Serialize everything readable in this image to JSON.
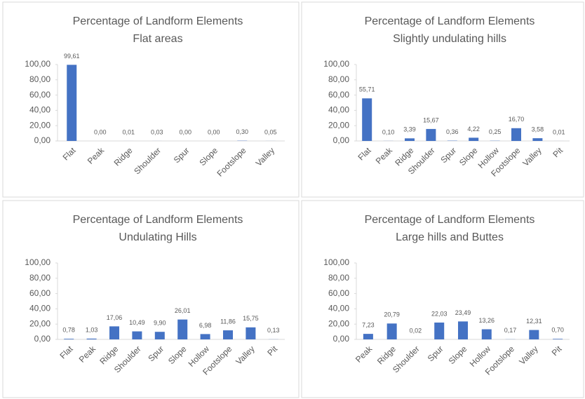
{
  "chart_data": [
    {
      "type": "bar",
      "title": "Percentage of Landform Elements",
      "subtitle": "Flat areas",
      "categories": [
        "Flat",
        "Peak",
        "Ridge",
        "Shoulder",
        "Spur",
        "Slope",
        "Footslope",
        "Valley"
      ],
      "values": [
        99.61,
        0,
        0.01,
        0.03,
        0,
        0,
        0.3,
        0.05
      ],
      "value_labels": [
        "99,61",
        "0,00",
        "0,01",
        "0,03",
        "0,00",
        "0,00",
        "0,30",
        "0,05"
      ],
      "color": "#4472c4",
      "ylim": [
        0,
        100
      ],
      "yticks": [
        {
          "value": 0,
          "label": "0,00"
        },
        {
          "value": 20,
          "label": "20,00"
        },
        {
          "value": 40,
          "label": "40,00"
        },
        {
          "value": 60,
          "label": "60,00"
        },
        {
          "value": 80,
          "label": "80,00"
        },
        {
          "value": 100,
          "label": "100,00"
        }
      ]
    },
    {
      "type": "bar",
      "title": "Percentage of Landform Elements",
      "subtitle": "Slightly undulating hills",
      "categories": [
        "Flat",
        "Peak",
        "Ridge",
        "Shoulder",
        "Spur",
        "Slope",
        "Hollow",
        "Footslope",
        "Valley",
        "Pit"
      ],
      "values": [
        55.71,
        0.1,
        3.39,
        15.67,
        0.36,
        4.22,
        0.25,
        16.7,
        3.58,
        0.01
      ],
      "value_labels": [
        "55,71",
        "0,10",
        "3,39",
        "15,67",
        "0,36",
        "4,22",
        "0,25",
        "16,70",
        "3,58",
        "0,01"
      ],
      "color": "#4472c4",
      "ylim": [
        0,
        100
      ],
      "yticks": [
        {
          "value": 0,
          "label": "0,00"
        },
        {
          "value": 20,
          "label": "20,00"
        },
        {
          "value": 40,
          "label": "40,00"
        },
        {
          "value": 60,
          "label": "60,00"
        },
        {
          "value": 80,
          "label": "80,00"
        },
        {
          "value": 100,
          "label": "100,00"
        }
      ]
    },
    {
      "type": "bar",
      "title": "Percentage of Landform Elements",
      "subtitle": "Undulating Hills",
      "categories": [
        "Flat",
        "Peak",
        "Ridge",
        "Shoulder",
        "Spur",
        "Slope",
        "Hollow",
        "Footslope",
        "Valley",
        "Pit"
      ],
      "values": [
        0.78,
        1.03,
        17.06,
        10.49,
        9.9,
        26.01,
        6.98,
        11.86,
        15.75,
        0.13
      ],
      "value_labels": [
        "0,78",
        "1,03",
        "17,06",
        "10,49",
        "9,90",
        "26,01",
        "6,98",
        "11,86",
        "15,75",
        "0,13"
      ],
      "color": "#4472c4",
      "ylim": [
        0,
        100
      ],
      "yticks": [
        {
          "value": 0,
          "label": "0,00"
        },
        {
          "value": 20,
          "label": "20,00"
        },
        {
          "value": 40,
          "label": "40,00"
        },
        {
          "value": 60,
          "label": "60,00"
        },
        {
          "value": 80,
          "label": "80,00"
        },
        {
          "value": 100,
          "label": "100,00"
        }
      ]
    },
    {
      "type": "bar",
      "title": "Percentage of Landform Elements",
      "subtitle": "Large hills and Buttes",
      "categories": [
        "Peak",
        "Ridge",
        "Shoulder",
        "Spur",
        "Slope",
        "Hollow",
        "Footslope",
        "Valley",
        "Pit"
      ],
      "values": [
        7.23,
        20.79,
        0.02,
        22.03,
        23.49,
        13.26,
        0.17,
        12.31,
        0.7
      ],
      "value_labels": [
        "7,23",
        "20,79",
        "0,02",
        "22,03",
        "23,49",
        "13,26",
        "0,17",
        "12,31",
        "0,70"
      ],
      "color": "#4472c4",
      "ylim": [
        0,
        100
      ],
      "yticks": [
        {
          "value": 0,
          "label": "0,00"
        },
        {
          "value": 20,
          "label": "20,00"
        },
        {
          "value": 40,
          "label": "40,00"
        },
        {
          "value": 60,
          "label": "60,00"
        },
        {
          "value": 80,
          "label": "80,00"
        },
        {
          "value": 100,
          "label": "100,00"
        }
      ]
    }
  ]
}
